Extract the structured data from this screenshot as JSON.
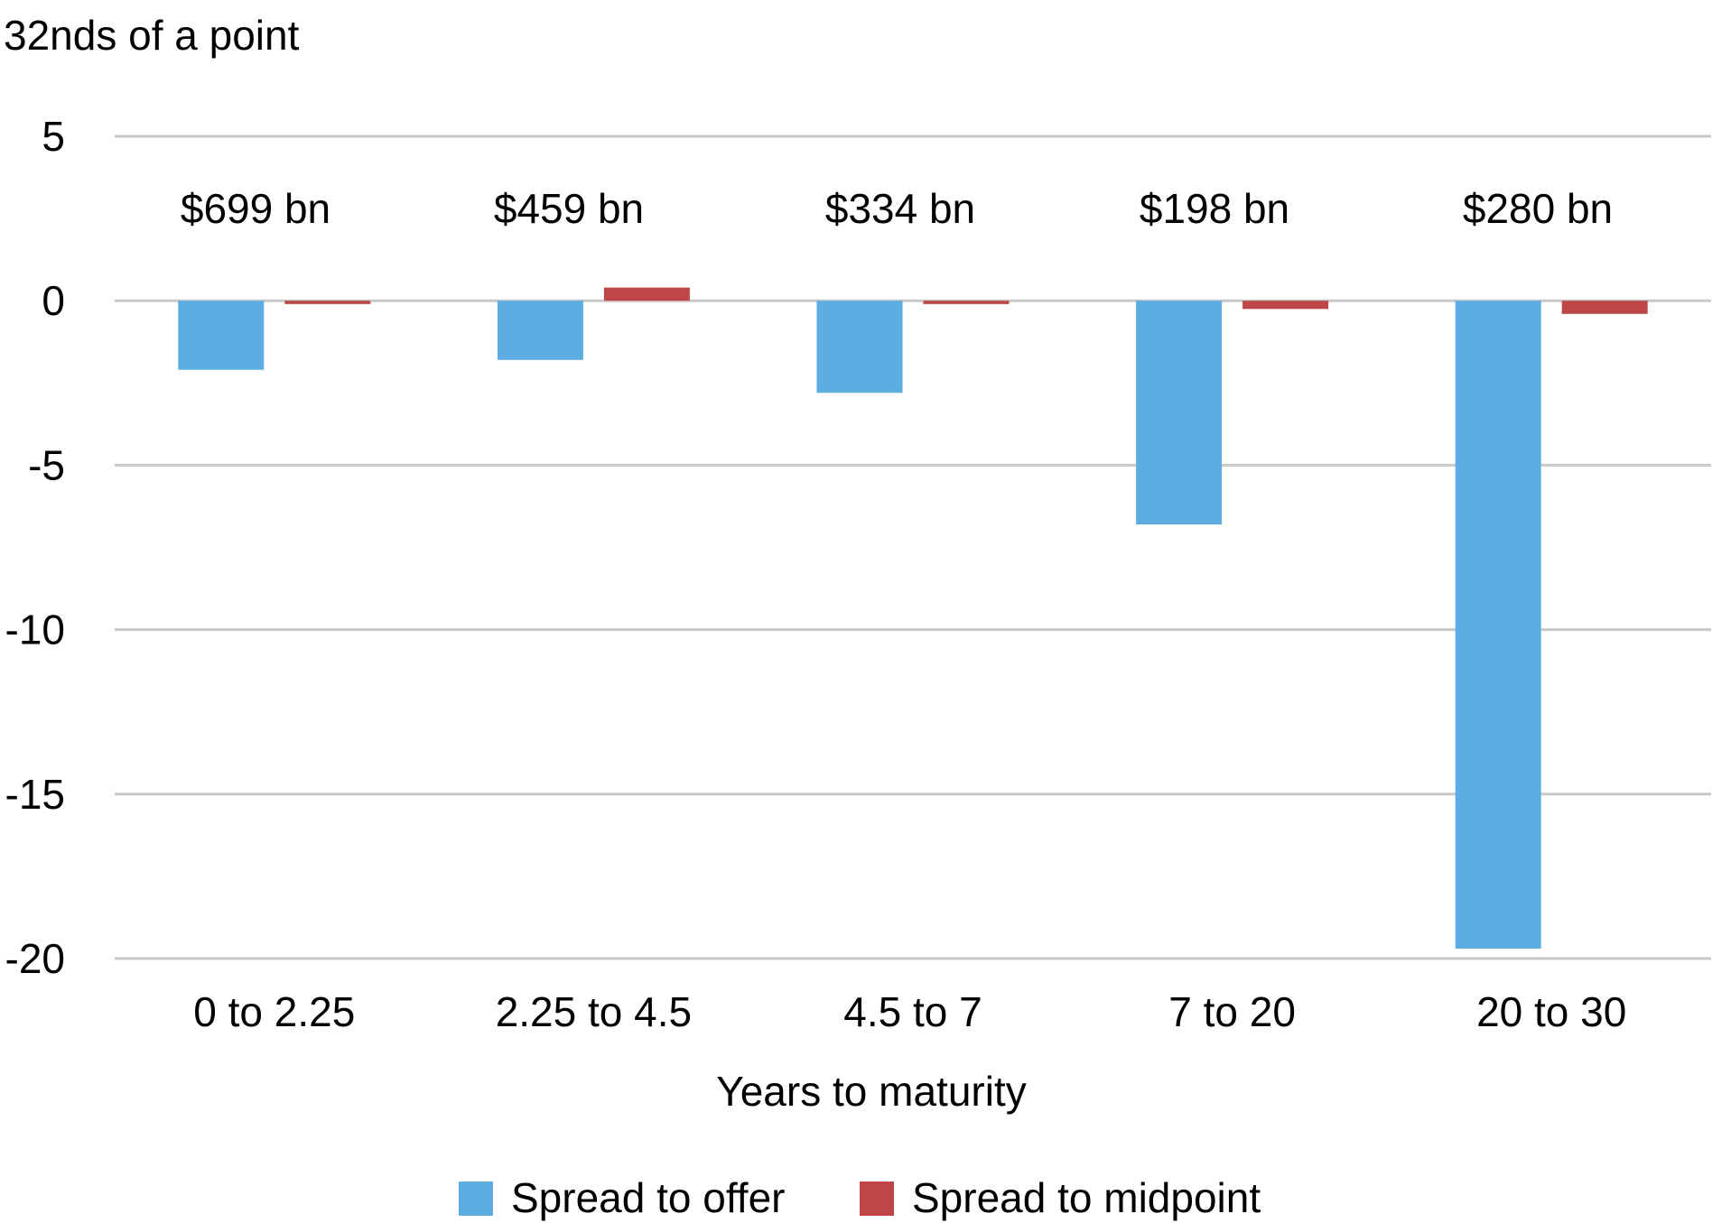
{
  "chart_data": {
    "type": "bar",
    "title": "",
    "ylabel": "32nds of a point",
    "xlabel": "Years to maturity",
    "ylim": [
      -20,
      5
    ],
    "yticks": [
      5,
      0,
      -5,
      -10,
      -15,
      -20
    ],
    "grid": true,
    "legend_position": "bottom",
    "categories": [
      "0 to 2.25",
      "2.25 to 4.5",
      "4.5 to 7",
      "7 to 20",
      "20 to 30"
    ],
    "annotations": [
      "$699 bn",
      "$459 bn",
      "$334 bn",
      "$198 bn",
      "$280 bn"
    ],
    "series": [
      {
        "name": "Spread to offer",
        "color": "#5DADE2",
        "values": [
          -2.1,
          -1.8,
          -2.8,
          -6.8,
          -19.7
        ]
      },
      {
        "name": "Spread to midpoint",
        "color": "#BE4646",
        "values": [
          -0.1,
          0.4,
          -0.1,
          -0.25,
          -0.4
        ]
      }
    ]
  }
}
